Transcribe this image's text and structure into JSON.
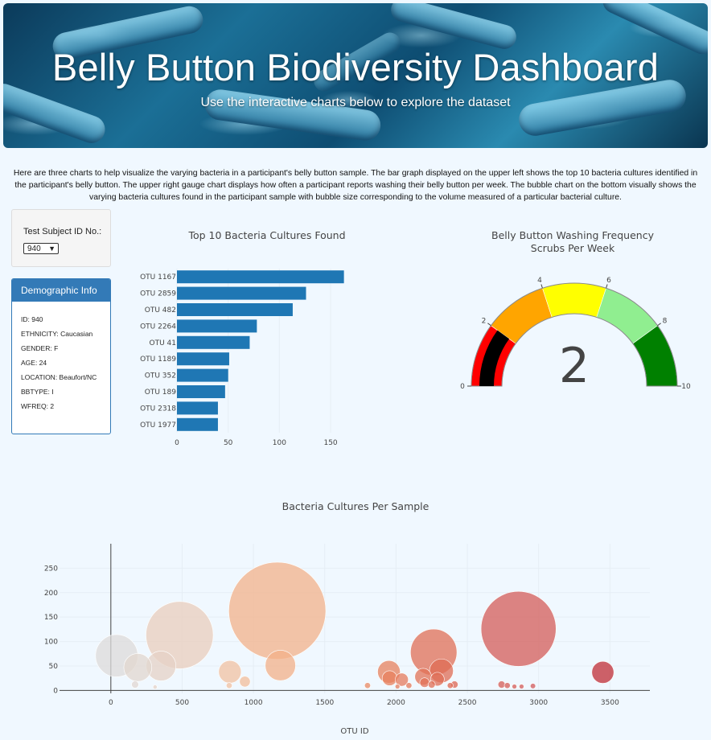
{
  "header": {
    "title": "Belly Button Biodiversity Dashboard",
    "subtitle": "Use the interactive charts below to explore the dataset"
  },
  "intro": "Here are three charts to help visualize the varying bacteria in a participant's belly button sample. The bar graph displayed on the upper left shows the top 10 bacteria cultures identified in the participant's belly button. The upper right gauge chart displays how often a participant reports washing their belly button per week. The bubble chart on the bottom visually shows the varying bacteria cultures found in the participant sample with bubble size corresponding to the volume measured of a particular bacterial culture.",
  "selector": {
    "label": "Test Subject ID No.:",
    "value": "940"
  },
  "demographics": {
    "heading": "Demographic Info",
    "rows": [
      "ID: 940",
      "ETHNICITY: Caucasian",
      "GENDER: F",
      "AGE: 24",
      "LOCATION: Beaufort/NC",
      "BBTYPE: I",
      "WFREQ: 2"
    ]
  },
  "chart_data": [
    {
      "type": "bar",
      "orientation": "horizontal",
      "title": "Top 10 Bacteria Cultures Found",
      "categories": [
        "OTU 1167",
        "OTU 2859",
        "OTU 482",
        "OTU 2264",
        "OTU 41",
        "OTU 1189",
        "OTU 352",
        "OTU 189",
        "OTU 2318",
        "OTU 1977"
      ],
      "values": [
        163,
        126,
        113,
        78,
        71,
        51,
        50,
        47,
        40,
        40
      ],
      "xticks": [
        0,
        50,
        100,
        150
      ],
      "xlim": [
        0,
        168
      ],
      "color": "#1f77b4"
    },
    {
      "type": "gauge",
      "title": "Belly Button Washing Frequency",
      "subtitle": "Scrubs Per Week",
      "value": 2,
      "range": [
        0,
        10
      ],
      "ticks": [
        0,
        2,
        4,
        6,
        8,
        10
      ],
      "bands": [
        {
          "from": 0,
          "to": 2,
          "color": "#ff0000"
        },
        {
          "from": 2,
          "to": 4,
          "color": "#ffa500"
        },
        {
          "from": 4,
          "to": 6,
          "color": "#ffff00"
        },
        {
          "from": 6,
          "to": 8,
          "color": "#90ee90"
        },
        {
          "from": 8,
          "to": 10,
          "color": "#008000"
        }
      ],
      "bar_color": "#000000"
    },
    {
      "type": "scatter",
      "title": "Bacteria Cultures Per Sample",
      "xlabel": "OTU ID",
      "xticks": [
        0,
        500,
        1000,
        1500,
        2000,
        2500,
        3000,
        3500
      ],
      "yticks": [
        0,
        50,
        100,
        150,
        200,
        250
      ],
      "xlim": [
        -360,
        3780
      ],
      "ylim": [
        -6,
        300
      ],
      "points": [
        {
          "x": 41,
          "y": 71
        },
        {
          "x": 189,
          "y": 47
        },
        {
          "x": 352,
          "y": 50
        },
        {
          "x": 482,
          "y": 113
        },
        {
          "x": 1167,
          "y": 163
        },
        {
          "x": 1189,
          "y": 51
        },
        {
          "x": 835,
          "y": 38
        },
        {
          "x": 940,
          "y": 18
        },
        {
          "x": 830,
          "y": 10
        },
        {
          "x": 170,
          "y": 12
        },
        {
          "x": 310,
          "y": 7
        },
        {
          "x": 1950,
          "y": 38
        },
        {
          "x": 1955,
          "y": 25
        },
        {
          "x": 2040,
          "y": 22
        },
        {
          "x": 2090,
          "y": 10
        },
        {
          "x": 1800,
          "y": 10
        },
        {
          "x": 2010,
          "y": 8
        },
        {
          "x": 2190,
          "y": 28
        },
        {
          "x": 2200,
          "y": 16
        },
        {
          "x": 2264,
          "y": 78
        },
        {
          "x": 2318,
          "y": 40
        },
        {
          "x": 2290,
          "y": 23
        },
        {
          "x": 2250,
          "y": 12
        },
        {
          "x": 2380,
          "y": 10
        },
        {
          "x": 2410,
          "y": 12
        },
        {
          "x": 2859,
          "y": 126
        },
        {
          "x": 2780,
          "y": 10
        },
        {
          "x": 2740,
          "y": 12
        },
        {
          "x": 2830,
          "y": 8
        },
        {
          "x": 2880,
          "y": 8
        },
        {
          "x": 2960,
          "y": 9
        },
        {
          "x": 3450,
          "y": 37
        }
      ],
      "size_by": "value",
      "colorscale": "OrRd-like (light grey at low OTU ID to dark red at high OTU ID)"
    }
  ]
}
